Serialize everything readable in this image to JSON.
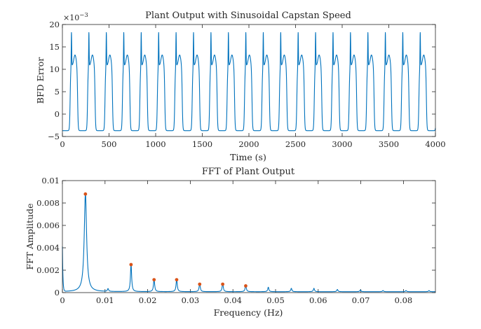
{
  "chart_data": [
    {
      "type": "line",
      "title": "Plant Output with Sinusoidal Capstan Speed",
      "xlabel": "Time (s)",
      "ylabel": "BFD Error",
      "y_multiplier_label": "×10",
      "y_multiplier_exponent": "−3",
      "xlim": [
        0,
        4000
      ],
      "ylim": [
        -5,
        20
      ],
      "xticks": [
        "0",
        "500",
        "1000",
        "1500",
        "2000",
        "2500",
        "3000",
        "3500",
        "4000"
      ],
      "yticks": [
        "−5",
        "0",
        "5",
        "10",
        "15",
        "20"
      ],
      "grid": false,
      "series": [
        {
          "color": "#0072BD",
          "signal": {
            "period_s": 187,
            "first_spike_s": 97,
            "low": -3.7,
            "spike_peak": 18.5,
            "shoulder": 13.2,
            "notch": 10.8
          }
        }
      ]
    },
    {
      "type": "line",
      "title": "FFT of Plant Output",
      "xlabel": "Frequency (Hz)",
      "ylabel": "FFT Amplitude",
      "xlim": [
        0,
        0.0875
      ],
      "ylim": [
        0,
        0.01
      ],
      "xticks": [
        "0",
        "0.01",
        "0.02",
        "0.03",
        "0.04",
        "0.05",
        "0.06",
        "0.07",
        "0.08"
      ],
      "yticks": [
        "0",
        "0.002",
        "0.004",
        "0.006",
        "0.008",
        "0.01"
      ],
      "grid": false,
      "series": [
        {
          "color": "#0072BD",
          "baseline": 8e-05,
          "peaks_hz": [
            0.0054,
            0.0107,
            0.0161,
            0.0215,
            0.0268,
            0.0322,
            0.0376,
            0.043,
            0.0483,
            0.0537,
            0.059,
            0.0645,
            0.0699,
            0.0752,
            0.0806,
            0.086
          ],
          "peaks_amp": [
            0.0088,
            0.00025,
            0.0025,
            0.00115,
            0.00115,
            0.00075,
            0.00075,
            0.0006,
            0.0004,
            0.0003,
            0.0003,
            0.0002,
            0.00015,
            0.0001,
            0.0001,
            0.0001
          ]
        }
      ],
      "markers": {
        "color": "#D95319",
        "points": [
          [
            0.0054,
            0.0088
          ],
          [
            0.0161,
            0.0025
          ],
          [
            0.0215,
            0.00115
          ],
          [
            0.0268,
            0.00115
          ],
          [
            0.0322,
            0.00075
          ],
          [
            0.0376,
            0.00075
          ],
          [
            0.043,
            0.0006
          ]
        ]
      }
    }
  ]
}
